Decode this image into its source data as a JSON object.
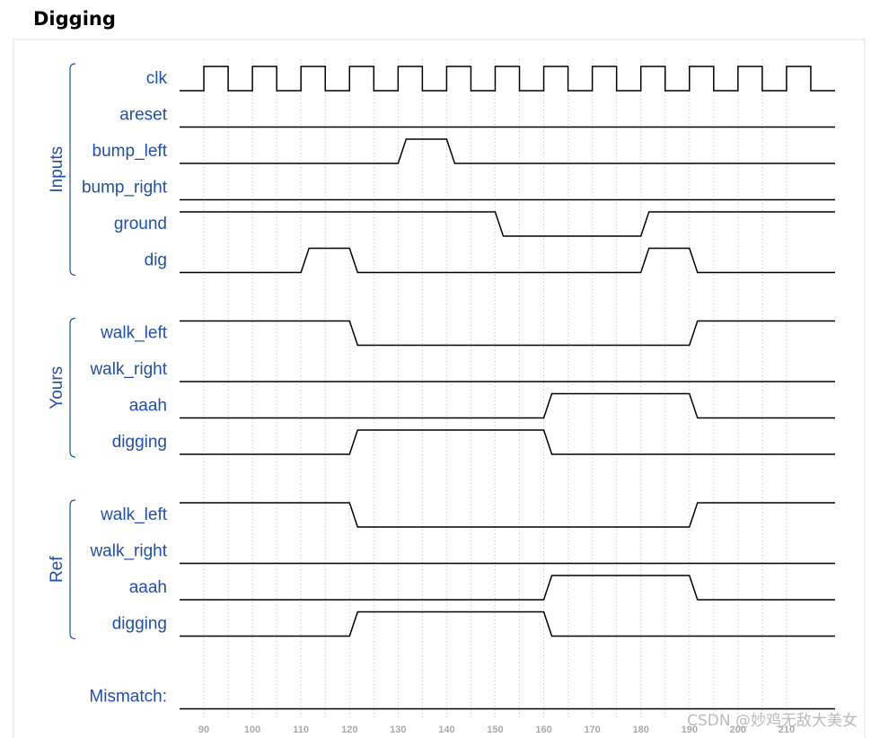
{
  "title": "Digging",
  "axis": {
    "range": [
      85,
      220
    ],
    "ticks": [
      90,
      100,
      110,
      120,
      130,
      140,
      150,
      160,
      170,
      180,
      190,
      200,
      210
    ]
  },
  "groups": [
    {
      "label": "Inputs",
      "signals": [
        {
          "name": "clk",
          "init": 0,
          "edge": "sharp",
          "toggles": [
            90,
            95,
            100,
            105,
            110,
            115,
            120,
            125,
            130,
            135,
            140,
            145,
            150,
            155,
            160,
            165,
            170,
            175,
            180,
            185,
            190,
            195,
            200,
            205,
            210,
            215
          ]
        },
        {
          "name": "areset",
          "init": 0,
          "toggles": []
        },
        {
          "name": "bump_left",
          "init": 0,
          "toggles": [
            130,
            140
          ]
        },
        {
          "name": "bump_right",
          "init": 0,
          "toggles": []
        },
        {
          "name": "ground",
          "init": 1,
          "toggles": [
            150,
            180
          ]
        },
        {
          "name": "dig",
          "init": 0,
          "toggles": [
            110,
            120,
            180,
            190
          ]
        }
      ]
    },
    {
      "label": "Yours",
      "signals": [
        {
          "name": "walk_left",
          "init": 1,
          "toggles": [
            120,
            190
          ]
        },
        {
          "name": "walk_right",
          "init": 0,
          "toggles": []
        },
        {
          "name": "aaah",
          "init": 0,
          "toggles": [
            160,
            190
          ]
        },
        {
          "name": "digging",
          "init": 0,
          "toggles": [
            120,
            160
          ]
        }
      ]
    },
    {
      "label": "Ref",
      "signals": [
        {
          "name": "walk_left",
          "init": 1,
          "toggles": [
            120,
            190
          ]
        },
        {
          "name": "walk_right",
          "init": 0,
          "toggles": []
        },
        {
          "name": "aaah",
          "init": 0,
          "toggles": [
            160,
            190
          ]
        },
        {
          "name": "digging",
          "init": 0,
          "toggles": [
            120,
            160
          ]
        }
      ]
    }
  ],
  "mismatch": {
    "name": "Mismatch:",
    "init": 0,
    "toggles": []
  },
  "watermark": "CSDN @妙鸡无敌大美女"
}
